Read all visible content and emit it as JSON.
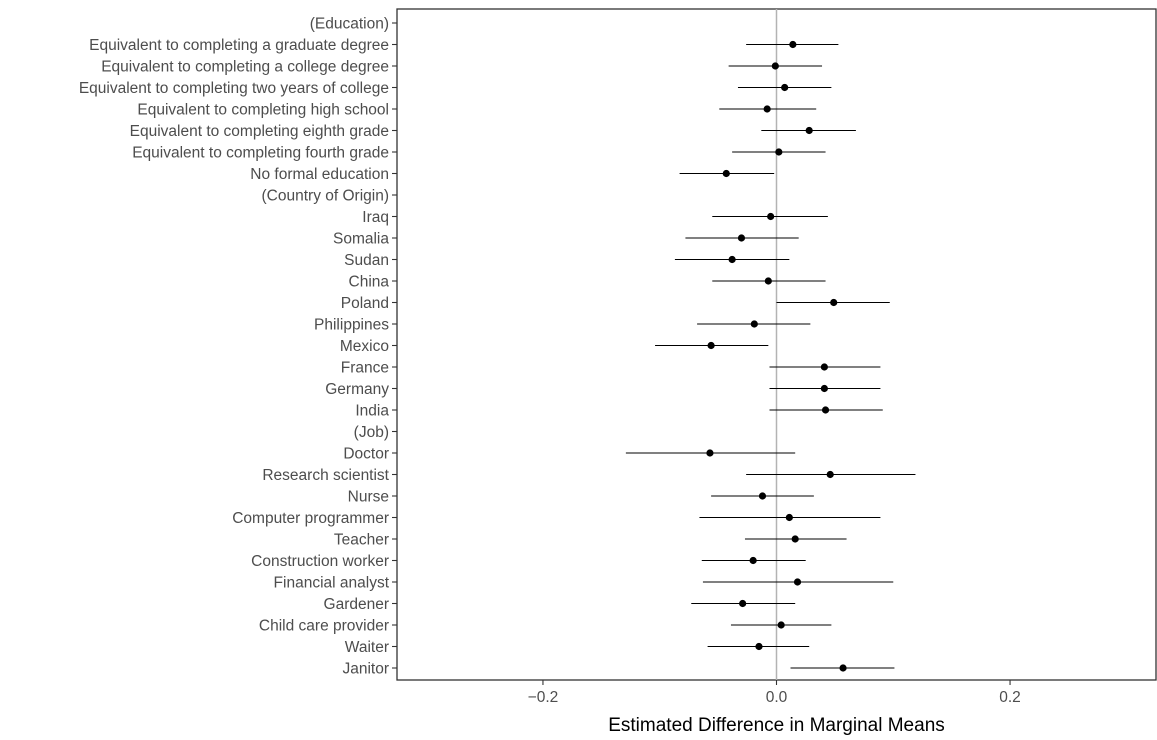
{
  "chart_data": {
    "type": "scatter",
    "subtype": "forest-plot-with-error-bars",
    "title": "",
    "xlabel": "Estimated Difference in Marginal Means",
    "ylabel": "",
    "xlim": [
      -0.325,
      0.325
    ],
    "xticks": [
      {
        "value": -0.2,
        "label": "−0.2"
      },
      {
        "value": 0.0,
        "label": "0.0"
      },
      {
        "value": 0.2,
        "label": "0.2"
      }
    ],
    "reference_line": 0.0,
    "grid": false,
    "colors": {
      "point": "#000000",
      "errorbar": "#000000",
      "reference_line": "#b3b3b3",
      "text": "#4d4d4d"
    },
    "rows": [
      {
        "label": "(Education)",
        "estimate": null,
        "lower": null,
        "upper": null
      },
      {
        "label": "Equivalent to completing a graduate degree",
        "estimate": 0.014,
        "lower": -0.026,
        "upper": 0.053
      },
      {
        "label": "Equivalent to completing a college degree",
        "estimate": -0.001,
        "lower": -0.041,
        "upper": 0.039
      },
      {
        "label": "Equivalent to completing two years of college",
        "estimate": 0.007,
        "lower": -0.033,
        "upper": 0.047
      },
      {
        "label": "Equivalent to completing high school",
        "estimate": -0.008,
        "lower": -0.049,
        "upper": 0.034
      },
      {
        "label": "Equivalent to completing eighth grade",
        "estimate": 0.028,
        "lower": -0.013,
        "upper": 0.068
      },
      {
        "label": "Equivalent to completing fourth grade",
        "estimate": 0.002,
        "lower": -0.038,
        "upper": 0.042
      },
      {
        "label": "No formal education",
        "estimate": -0.043,
        "lower": -0.083,
        "upper": -0.002
      },
      {
        "label": "(Country of Origin)",
        "estimate": null,
        "lower": null,
        "upper": null
      },
      {
        "label": "Iraq",
        "estimate": -0.005,
        "lower": -0.055,
        "upper": 0.044
      },
      {
        "label": "Somalia",
        "estimate": -0.03,
        "lower": -0.078,
        "upper": 0.019
      },
      {
        "label": "Sudan",
        "estimate": -0.038,
        "lower": -0.087,
        "upper": 0.011
      },
      {
        "label": "China",
        "estimate": -0.007,
        "lower": -0.055,
        "upper": 0.042
      },
      {
        "label": "Poland",
        "estimate": 0.049,
        "lower": 0.0,
        "upper": 0.097
      },
      {
        "label": "Philippines",
        "estimate": -0.019,
        "lower": -0.068,
        "upper": 0.029
      },
      {
        "label": "Mexico",
        "estimate": -0.056,
        "lower": -0.104,
        "upper": -0.007
      },
      {
        "label": "France",
        "estimate": 0.041,
        "lower": -0.006,
        "upper": 0.089
      },
      {
        "label": "Germany",
        "estimate": 0.041,
        "lower": -0.006,
        "upper": 0.089
      },
      {
        "label": "India",
        "estimate": 0.042,
        "lower": -0.006,
        "upper": 0.091
      },
      {
        "label": "(Job)",
        "estimate": null,
        "lower": null,
        "upper": null
      },
      {
        "label": "Doctor",
        "estimate": -0.057,
        "lower": -0.129,
        "upper": 0.016
      },
      {
        "label": "Research scientist",
        "estimate": 0.046,
        "lower": -0.026,
        "upper": 0.119
      },
      {
        "label": "Nurse",
        "estimate": -0.012,
        "lower": -0.056,
        "upper": 0.032
      },
      {
        "label": "Computer programmer",
        "estimate": 0.011,
        "lower": -0.066,
        "upper": 0.089
      },
      {
        "label": "Teacher",
        "estimate": 0.016,
        "lower": -0.027,
        "upper": 0.06
      },
      {
        "label": "Construction worker",
        "estimate": -0.02,
        "lower": -0.064,
        "upper": 0.025
      },
      {
        "label": "Financial analyst",
        "estimate": 0.018,
        "lower": -0.063,
        "upper": 0.1
      },
      {
        "label": "Gardener",
        "estimate": -0.029,
        "lower": -0.073,
        "upper": 0.016
      },
      {
        "label": "Child care provider",
        "estimate": 0.004,
        "lower": -0.039,
        "upper": 0.047
      },
      {
        "label": "Waiter",
        "estimate": -0.015,
        "lower": -0.059,
        "upper": 0.028
      },
      {
        "label": "Janitor",
        "estimate": 0.057,
        "lower": 0.012,
        "upper": 0.101
      }
    ]
  }
}
